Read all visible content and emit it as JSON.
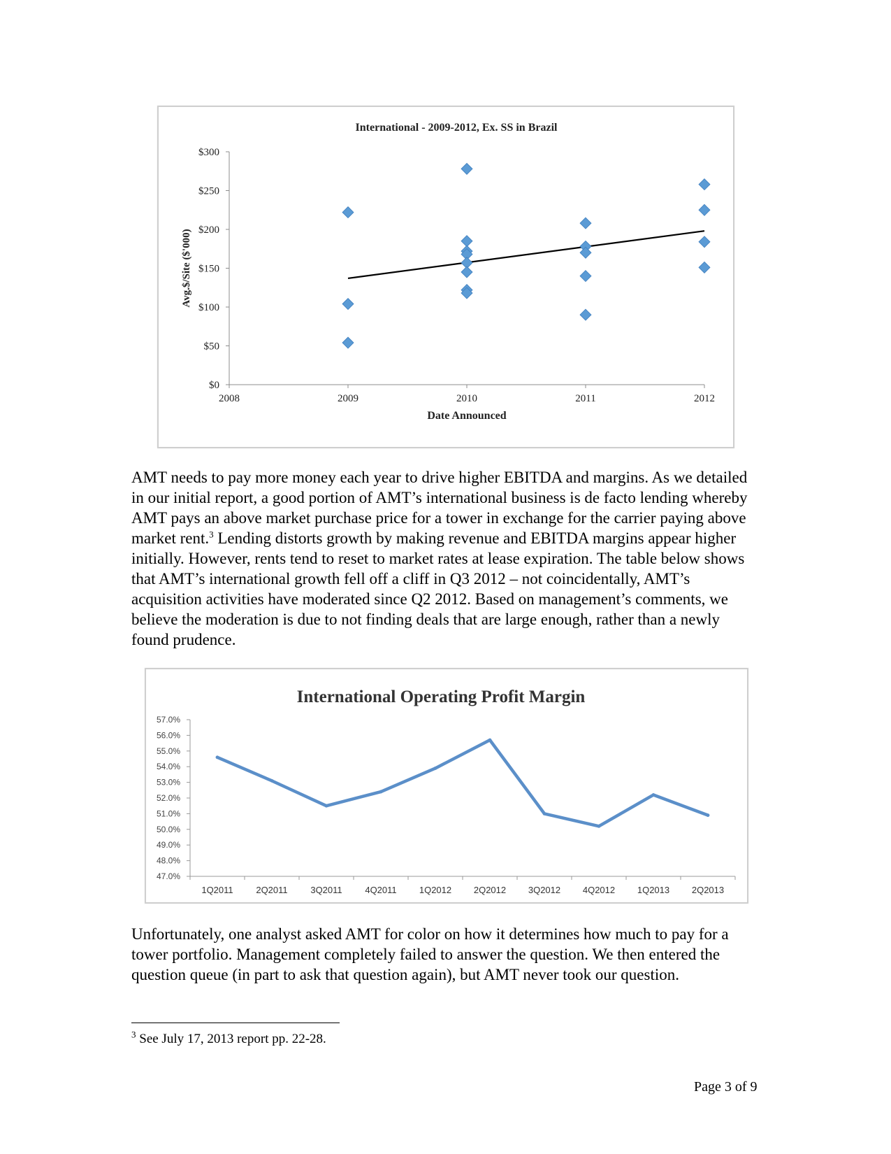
{
  "chart_data": [
    {
      "type": "scatter",
      "title": "International - 2009-2012, Ex. SS in Brazil",
      "xlabel": "Date Announced",
      "ylabel": "Avg.$/Site ($'000)",
      "x_ticks": [
        "2008",
        "2009",
        "2010",
        "2011",
        "2012"
      ],
      "y_ticks": [
        "$0",
        "$50",
        "$100",
        "$150",
        "$200",
        "$250",
        "$300"
      ],
      "xlim": [
        2008,
        2012
      ],
      "ylim": [
        0,
        300
      ],
      "marker_color": "#5B9BD5",
      "trendline_color": "#000000",
      "points": [
        {
          "x": 2009,
          "y": 222
        },
        {
          "x": 2009,
          "y": 104
        },
        {
          "x": 2009,
          "y": 54
        },
        {
          "x": 2010,
          "y": 278
        },
        {
          "x": 2010,
          "y": 185
        },
        {
          "x": 2010,
          "y": 172
        },
        {
          "x": 2010,
          "y": 168
        },
        {
          "x": 2010,
          "y": 157
        },
        {
          "x": 2010,
          "y": 145
        },
        {
          "x": 2010,
          "y": 122
        },
        {
          "x": 2010,
          "y": 118
        },
        {
          "x": 2011,
          "y": 208
        },
        {
          "x": 2011,
          "y": 178
        },
        {
          "x": 2011,
          "y": 170
        },
        {
          "x": 2011,
          "y": 140
        },
        {
          "x": 2011,
          "y": 90
        },
        {
          "x": 2012,
          "y": 258
        },
        {
          "x": 2012,
          "y": 225
        },
        {
          "x": 2012,
          "y": 184
        },
        {
          "x": 2012,
          "y": 151
        }
      ],
      "trendline": {
        "x": [
          2009,
          2012
        ],
        "y": [
          137,
          198
        ]
      }
    },
    {
      "type": "line",
      "title": "International Operating Profit Margin",
      "categories": [
        "1Q2011",
        "2Q2011",
        "3Q2011",
        "4Q2011",
        "1Q2012",
        "2Q2012",
        "3Q2012",
        "4Q2012",
        "1Q2013",
        "2Q2013"
      ],
      "y_ticks": [
        "47.0%",
        "48.0%",
        "49.0%",
        "50.0%",
        "51.0%",
        "52.0%",
        "53.0%",
        "54.0%",
        "55.0%",
        "56.0%",
        "57.0%"
      ],
      "ylim": [
        47.0,
        57.0
      ],
      "line_color": "#5B8FC9",
      "series": [
        {
          "values": [
            54.6,
            53.1,
            51.5,
            52.4,
            53.9,
            55.7,
            51.0,
            50.2,
            52.2,
            50.9
          ]
        }
      ]
    }
  ],
  "paragraph1": {
    "text_a": "AMT needs to pay more money each year to drive higher EBITDA and margins.  As we detailed in our initial report, a good portion of AMT’s international business is de facto lending whereby AMT pays an above market purchase price for a tower in exchange for the carrier paying above market rent.",
    "footnote_ref": "3",
    "text_b": "  Lending distorts growth by making revenue and EBITDA margins appear higher initially.  However, rents tend to reset to market rates at lease expiration.  The table below shows that AMT’s international growth fell off a cliff in Q3 2012 – not coincidentally, AMT’s acquisition activities have moderated since Q2 2012.  Based on management’s comments, we believe the moderation is due to not finding deals that are large enough, rather than a newly found prudence."
  },
  "paragraph2": "Unfortunately, one analyst asked AMT for color on how it determines how much to pay for a tower portfolio.  Management completely failed to answer the question.  We then entered the question queue (in part to ask that question again), but AMT never took our question.",
  "footnote": {
    "number": "3",
    "text": " See July 17, 2013 report pp. 22-28."
  },
  "page_number": "Page 3 of 9"
}
